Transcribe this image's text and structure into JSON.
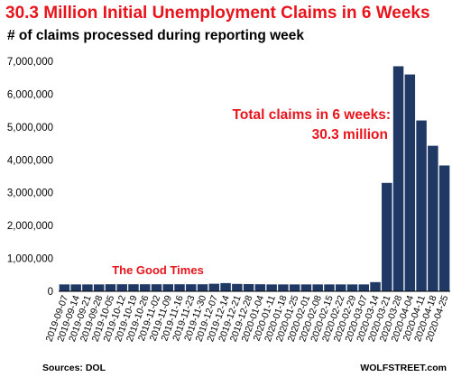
{
  "chart_data": {
    "type": "bar",
    "title": "30.3 Million Initial Unemployment Claims in 6 Weeks",
    "subtitle": "# of claims processed during reporting week",
    "ylim": [
      0,
      7000000
    ],
    "yticks": [
      "0",
      "1,000,000",
      "2,000,000",
      "3,000,000",
      "4,000,000",
      "5,000,000",
      "6,000,000",
      "7,000,000"
    ],
    "ytick_values": [
      0,
      1000000,
      2000000,
      3000000,
      4000000,
      5000000,
      6000000,
      7000000
    ],
    "grid": false,
    "bar_color": "#1f3864",
    "categories": [
      "2019-09-07",
      "2019-09-14",
      "2019-09-21",
      "2019-09-28",
      "2019-10-05",
      "2019-10-12",
      "2019-10-19",
      "2019-10-26",
      "2019-11-02",
      "2019-11-09",
      "2019-11-16",
      "2019-11-23",
      "2019-11-30",
      "2019-12-07",
      "2019-12-14",
      "2019-12-21",
      "2019-12-28",
      "2020-01-04",
      "2020-01-11",
      "2020-01-18",
      "2020-01-25",
      "2020-02-01",
      "2020-02-08",
      "2020-02-15",
      "2020-02-22",
      "2020-02-29",
      "2020-03-07",
      "2020-03-14",
      "2020-03-21",
      "2020-03-28",
      "2020-04-04",
      "2020-04-11",
      "2020-04-18",
      "2020-04-25"
    ],
    "values": [
      210000,
      210000,
      210000,
      210000,
      215000,
      215000,
      215000,
      215000,
      215000,
      215000,
      215000,
      215000,
      215000,
      230000,
      250000,
      225000,
      220000,
      215000,
      210000,
      210000,
      210000,
      210000,
      210000,
      210000,
      210000,
      210000,
      210000,
      280000,
      3300000,
      6850000,
      6600000,
      5200000,
      4430000,
      3830000
    ],
    "annotations": [
      {
        "text": "The Good Times"
      },
      {
        "text": "Total claims in 6 weeks:"
      },
      {
        "text": "30.3 million"
      }
    ],
    "source": "Sources: DOL",
    "credit": "WOLFSTREET.com"
  }
}
